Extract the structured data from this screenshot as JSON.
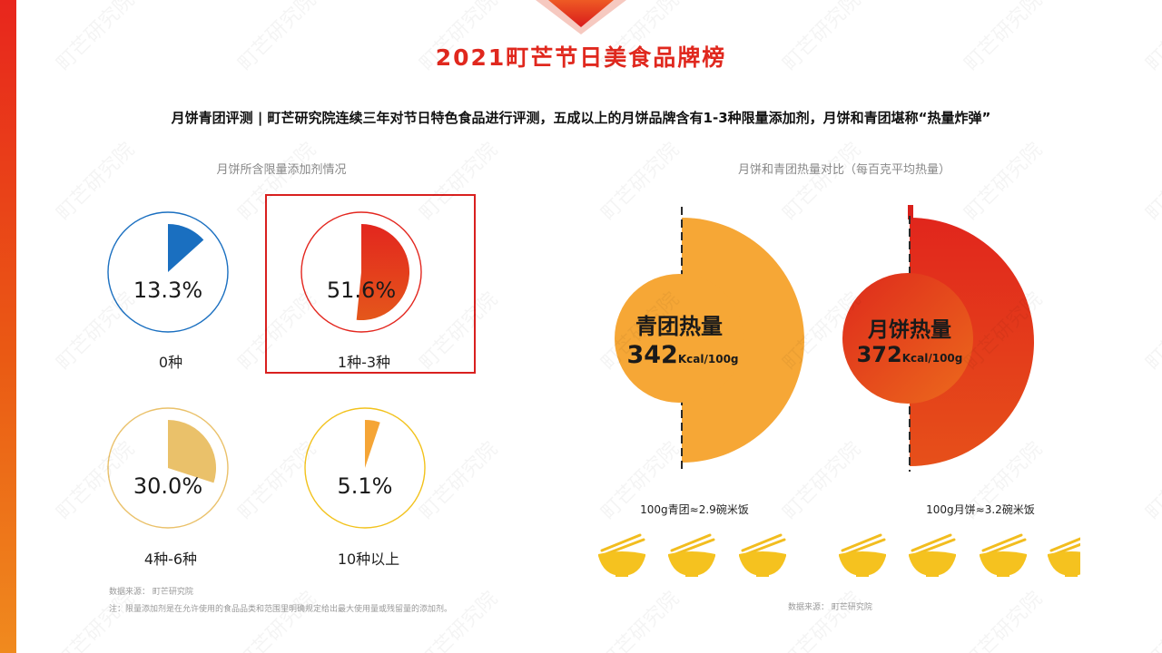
{
  "title": "2021町芒节日美食品牌榜",
  "subtitle": "月饼青团评测 | 町芒研究院连续三年对节日特色食品进行评测，五成以上的月饼品牌含有1-3种限量添加剂，月饼和青团堪称“热量炸弹”",
  "watermark": "町芒研究院",
  "colors": {
    "brand_red": "#e0281e",
    "blue": "#1a6fc0",
    "red": "#e3261e",
    "sand": "#eac16a",
    "yellow": "#f2c21c",
    "orange": "#f5a536"
  },
  "left_panel": {
    "title": "月饼所含限量添加剂情况",
    "source": "数据来源：  町芒研究院",
    "note": "注：限量添加剂是在允许使用的食品品类和范围里明确规定给出最大使用量或残留量的添加剂。",
    "highlighted": "1种-3种"
  },
  "right_panel": {
    "title": "月饼和青团热量对比（每百克平均热量）",
    "source": "数据来源：  町芒研究院",
    "qingtuan": {
      "label": "青团热量",
      "value": "342",
      "unit": "Kcal/100g",
      "caption": "100g青团≈2.9碗米饭"
    },
    "mooncake": {
      "label": "月饼热量",
      "value": "372",
      "unit": "Kcal/100g",
      "caption": "100g月饼≈3.2碗米饭"
    },
    "bowl_icon": "rice-bowl-with-chopsticks-icon"
  },
  "chart_data": [
    {
      "type": "pie",
      "title": "月饼所含限量添加剂情况",
      "categories": [
        "0种",
        "1种-3种",
        "4种-6种",
        "10种以上"
      ],
      "values": [
        13.3,
        51.6,
        30.0,
        5.1
      ],
      "value_labels": [
        "13.3%",
        "51.6%",
        "30.0%",
        "5.1%"
      ],
      "colors": [
        "#1a6fc0",
        "#e3261e",
        "#eac16a",
        "#f5a536"
      ],
      "ring_colors": [
        "#1a6fc0",
        "#e3261e",
        "#eac16a",
        "#f2c21c"
      ]
    },
    {
      "type": "bar",
      "title": "月饼和青团热量对比（每百克平均热量）",
      "categories": [
        "青团",
        "月饼"
      ],
      "values": [
        342,
        372
      ],
      "unit": "Kcal/100g",
      "rice_bowls": [
        2.9,
        3.2
      ]
    }
  ]
}
